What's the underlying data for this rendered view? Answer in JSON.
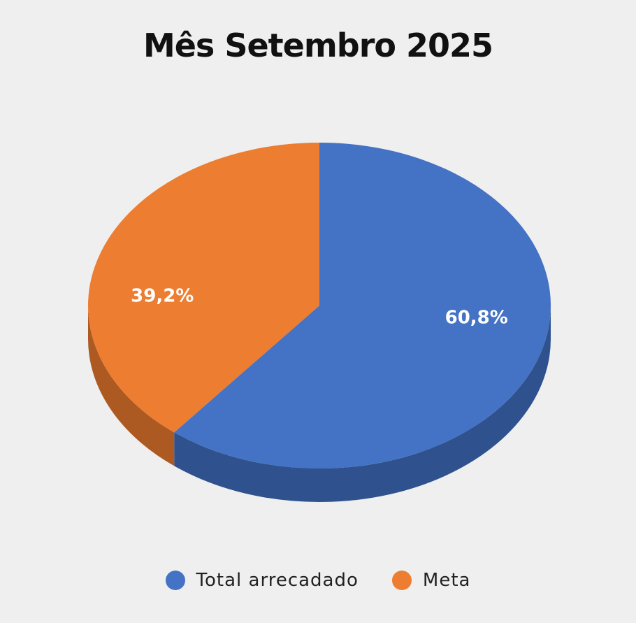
{
  "chart_data": {
    "type": "pie",
    "title": "Mês Setembro 2025",
    "slices": [
      {
        "name": "Total arrecadado",
        "value": 60.8,
        "label": "60,8%",
        "color": "#4472c4",
        "side_color": "#2f528f"
      },
      {
        "name": "Meta",
        "value": 39.2,
        "label": "39,2%",
        "color": "#ed7d31",
        "side_color": "#ad5a22"
      }
    ],
    "legend_position": "bottom",
    "style": "3d"
  }
}
